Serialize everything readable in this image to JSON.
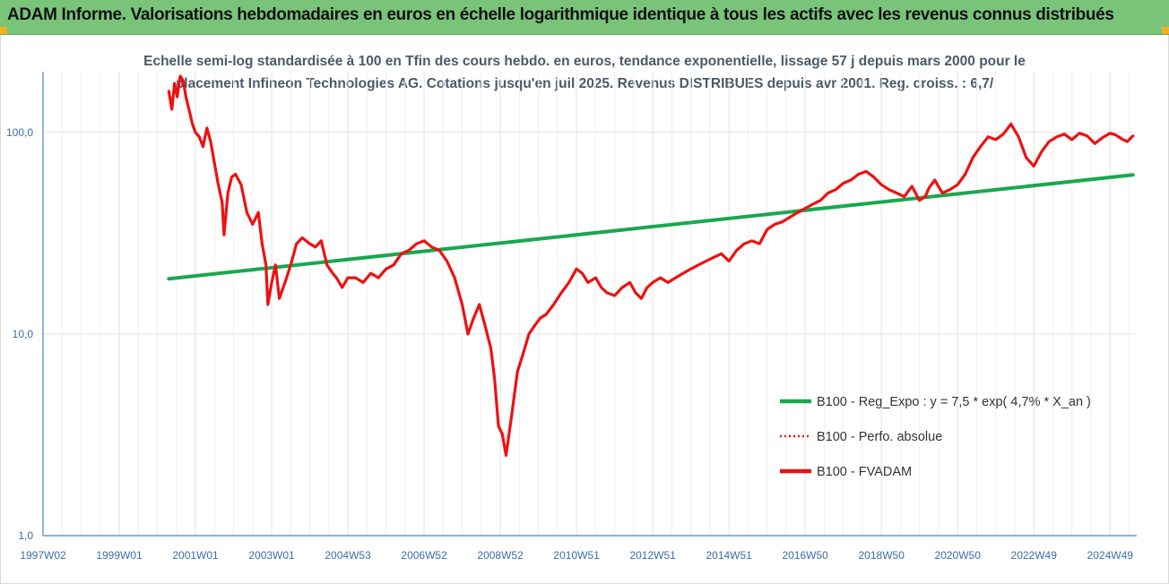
{
  "header": {
    "title": "ADAM Informe. Valorisations hebdomadaires en euros en échelle logarithmique identique à tous les actifs avec les revenus connus distribués"
  },
  "colors": {
    "header_bg": "#7ac47a",
    "fvadam": "#ee1111",
    "regression": "#1aa84e",
    "perfo": "#ee1111"
  },
  "chart_data": {
    "type": "line",
    "title_lines": [
      "Echelle semi-log standardisée à 100 en Tfin des cours hebdo. en euros, tendance exponentielle, lissage 57 j depuis mars 2000 pour le",
      "placement Infineon Technologies AG. Cotations jusqu'en juil 2025. Revenus DISTRIBUES depuis avr 2001. Reg. croiss. : 6,7/"
    ],
    "y_scale": "log",
    "ylim": [
      1,
      200
    ],
    "y_ticks": [
      {
        "value": 100,
        "label": "100,0"
      },
      {
        "value": 10,
        "label": "10,0"
      },
      {
        "value": 1,
        "label": "1,0"
      }
    ],
    "xlim": [
      1997.0,
      2025.7
    ],
    "x_ticks": [
      {
        "value": 1997.0,
        "label": "1997W02"
      },
      {
        "value": 1999.0,
        "label": "1999W01"
      },
      {
        "value": 2001.0,
        "label": "2001W01"
      },
      {
        "value": 2003.0,
        "label": "2003W01"
      },
      {
        "value": 2005.0,
        "label": "2004W53"
      },
      {
        "value": 2007.0,
        "label": "2006W52"
      },
      {
        "value": 2009.0,
        "label": "2008W52"
      },
      {
        "value": 2011.0,
        "label": "2010W51"
      },
      {
        "value": 2013.0,
        "label": "2012W51"
      },
      {
        "value": 2015.0,
        "label": "2014W51"
      },
      {
        "value": 2017.0,
        "label": "2016W50"
      },
      {
        "value": 2019.0,
        "label": "2018W50"
      },
      {
        "value": 2021.0,
        "label": "2020W50"
      },
      {
        "value": 2023.0,
        "label": "2022W49"
      },
      {
        "value": 2025.0,
        "label": "2024W49"
      }
    ],
    "grid": {
      "vertical": true,
      "horizontal": true
    },
    "legend_position": "right",
    "series": [
      {
        "name": "B100 - Reg_Expo : y = 7,5 * exp( 4,7% *  X_an )",
        "style": "solid-green",
        "x": [
          2000.3,
          2025.6
        ],
        "y": [
          18.8,
          61.5
        ]
      },
      {
        "name": "B100 - Perfo. absolue",
        "style": "dotted-red",
        "x": [],
        "y": []
      },
      {
        "name": "B100 - FVADAM",
        "style": "solid-red",
        "x": [
          2000.3,
          2000.38,
          2000.45,
          2000.52,
          2000.6,
          2000.68,
          2000.75,
          2000.83,
          2000.92,
          2001.0,
          2001.1,
          2001.2,
          2001.3,
          2001.4,
          2001.5,
          2001.6,
          2001.7,
          2001.75,
          2001.85,
          2001.95,
          2002.05,
          2002.2,
          2002.35,
          2002.5,
          2002.65,
          2002.75,
          2002.85,
          2002.9,
          2003.0,
          2003.1,
          2003.2,
          2003.35,
          2003.5,
          2003.65,
          2003.8,
          2004.0,
          2004.15,
          2004.3,
          2004.45,
          2004.6,
          2004.7,
          2004.85,
          2005.0,
          2005.2,
          2005.4,
          2005.6,
          2005.8,
          2006.0,
          2006.2,
          2006.4,
          2006.6,
          2006.8,
          2007.0,
          2007.2,
          2007.4,
          2007.6,
          2007.8,
          2008.0,
          2008.15,
          2008.3,
          2008.45,
          2008.6,
          2008.75,
          2008.85,
          2008.95,
          2009.05,
          2009.15,
          2009.3,
          2009.45,
          2009.6,
          2009.75,
          2009.9,
          2010.05,
          2010.2,
          2010.4,
          2010.6,
          2010.8,
          2011.0,
          2011.15,
          2011.3,
          2011.5,
          2011.65,
          2011.8,
          2012.0,
          2012.2,
          2012.4,
          2012.55,
          2012.7,
          2012.85,
          2013.0,
          2013.2,
          2013.4,
          2013.6,
          2013.8,
          2014.0,
          2014.2,
          2014.4,
          2014.6,
          2014.8,
          2015.0,
          2015.2,
          2015.4,
          2015.6,
          2015.8,
          2016.0,
          2016.2,
          2016.4,
          2016.6,
          2016.8,
          2017.0,
          2017.2,
          2017.4,
          2017.6,
          2017.8,
          2018.0,
          2018.2,
          2018.4,
          2018.6,
          2018.8,
          2019.0,
          2019.2,
          2019.4,
          2019.6,
          2019.8,
          2020.0,
          2020.15,
          2020.25,
          2020.4,
          2020.6,
          2020.8,
          2021.0,
          2021.2,
          2021.4,
          2021.6,
          2021.8,
          2022.0,
          2022.2,
          2022.4,
          2022.6,
          2022.8,
          2023.0,
          2023.2,
          2023.4,
          2023.6,
          2023.8,
          2024.0,
          2024.2,
          2024.4,
          2024.6,
          2024.8,
          2025.0,
          2025.15,
          2025.3,
          2025.45,
          2025.6
        ],
        "y": [
          160,
          130,
          175,
          150,
          190,
          180,
          150,
          130,
          110,
          100,
          95,
          85,
          105,
          90,
          70,
          55,
          45,
          31,
          50,
          60,
          62,
          55,
          40,
          35,
          40,
          28,
          22,
          14,
          18,
          22,
          15,
          18,
          22,
          28,
          30,
          28,
          27,
          29,
          22,
          20,
          19,
          17,
          19,
          19,
          18,
          20,
          19,
          21,
          22,
          25,
          26,
          28,
          29,
          27,
          26,
          23,
          19,
          14,
          10,
          12,
          14,
          11,
          8.5,
          6,
          3.5,
          3.2,
          2.5,
          4,
          6.5,
          8,
          10,
          11,
          12,
          12.5,
          14,
          16,
          18,
          21,
          20,
          18,
          19,
          17,
          16,
          15.5,
          17,
          18,
          16,
          15,
          17,
          18,
          19,
          18,
          19,
          20,
          21,
          22,
          23,
          24,
          25,
          23,
          26,
          28,
          29,
          28,
          33,
          35,
          36,
          38,
          40,
          42,
          44,
          46,
          50,
          52,
          56,
          58,
          62,
          64,
          60,
          55,
          52,
          50,
          48,
          54,
          46,
          48,
          53,
          58,
          50,
          52,
          55,
          62,
          75,
          85,
          95,
          92,
          98,
          110,
          95,
          75,
          68,
          80,
          90,
          95,
          98,
          92,
          99,
          96,
          88,
          94,
          99,
          97,
          93,
          90,
          96
        ]
      }
    ]
  }
}
